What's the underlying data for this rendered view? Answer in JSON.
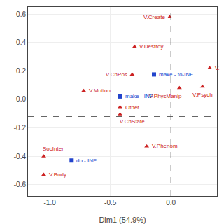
{
  "chart_data": {
    "type": "scatter",
    "xlabel": "Dim1 (54.9%)",
    "xlim": [
      -1.18,
      0.38
    ],
    "ylim": [
      -0.68,
      0.65
    ],
    "xticks": [
      {
        "value": -1.0,
        "label": "-1.0"
      },
      {
        "value": -0.5,
        "label": "-0.5"
      },
      {
        "value": 0.0,
        "label": "0.0"
      }
    ],
    "yticks": [
      -0.6,
      -0.4,
      -0.2,
      {
        "value": 0.0,
        "label": "0.0"
      },
      0.2,
      0.4,
      0.6
    ],
    "grid": true,
    "crosshair": {
      "x": 0.0,
      "y": -0.12,
      "color": "#444444",
      "line_style": "dashed"
    },
    "series": [
      {
        "color": "#cc2222",
        "marker": "triangle",
        "x": [
          -0.01,
          -0.3,
          -0.32,
          0.07,
          -0.72,
          -0.42,
          -0.42,
          -0.2,
          -1.05,
          -1.05,
          0.26,
          0.32
        ],
        "y": [
          0.58,
          0.37,
          0.175,
          0.08,
          0.06,
          -0.055,
          -0.105,
          -0.33,
          -0.4,
          -0.53,
          0.09,
          0.22
        ],
        "labels": [
          "V.Create",
          "V.Destroy",
          "V.ChPos",
          "V.PhysManip",
          "V.Motion",
          "Other",
          "V.ChState",
          "V.Phenom",
          "SocInter",
          "V.Body",
          "V.Psych",
          "V."
        ]
      },
      {
        "color": "#2244cc",
        "marker": "square",
        "x": [
          -0.14,
          -0.42,
          -0.82
        ],
        "y": [
          0.175,
          0.02,
          -0.43
        ],
        "labels": [
          "make - to-INF",
          "make - INF",
          "do - INF"
        ]
      }
    ]
  }
}
